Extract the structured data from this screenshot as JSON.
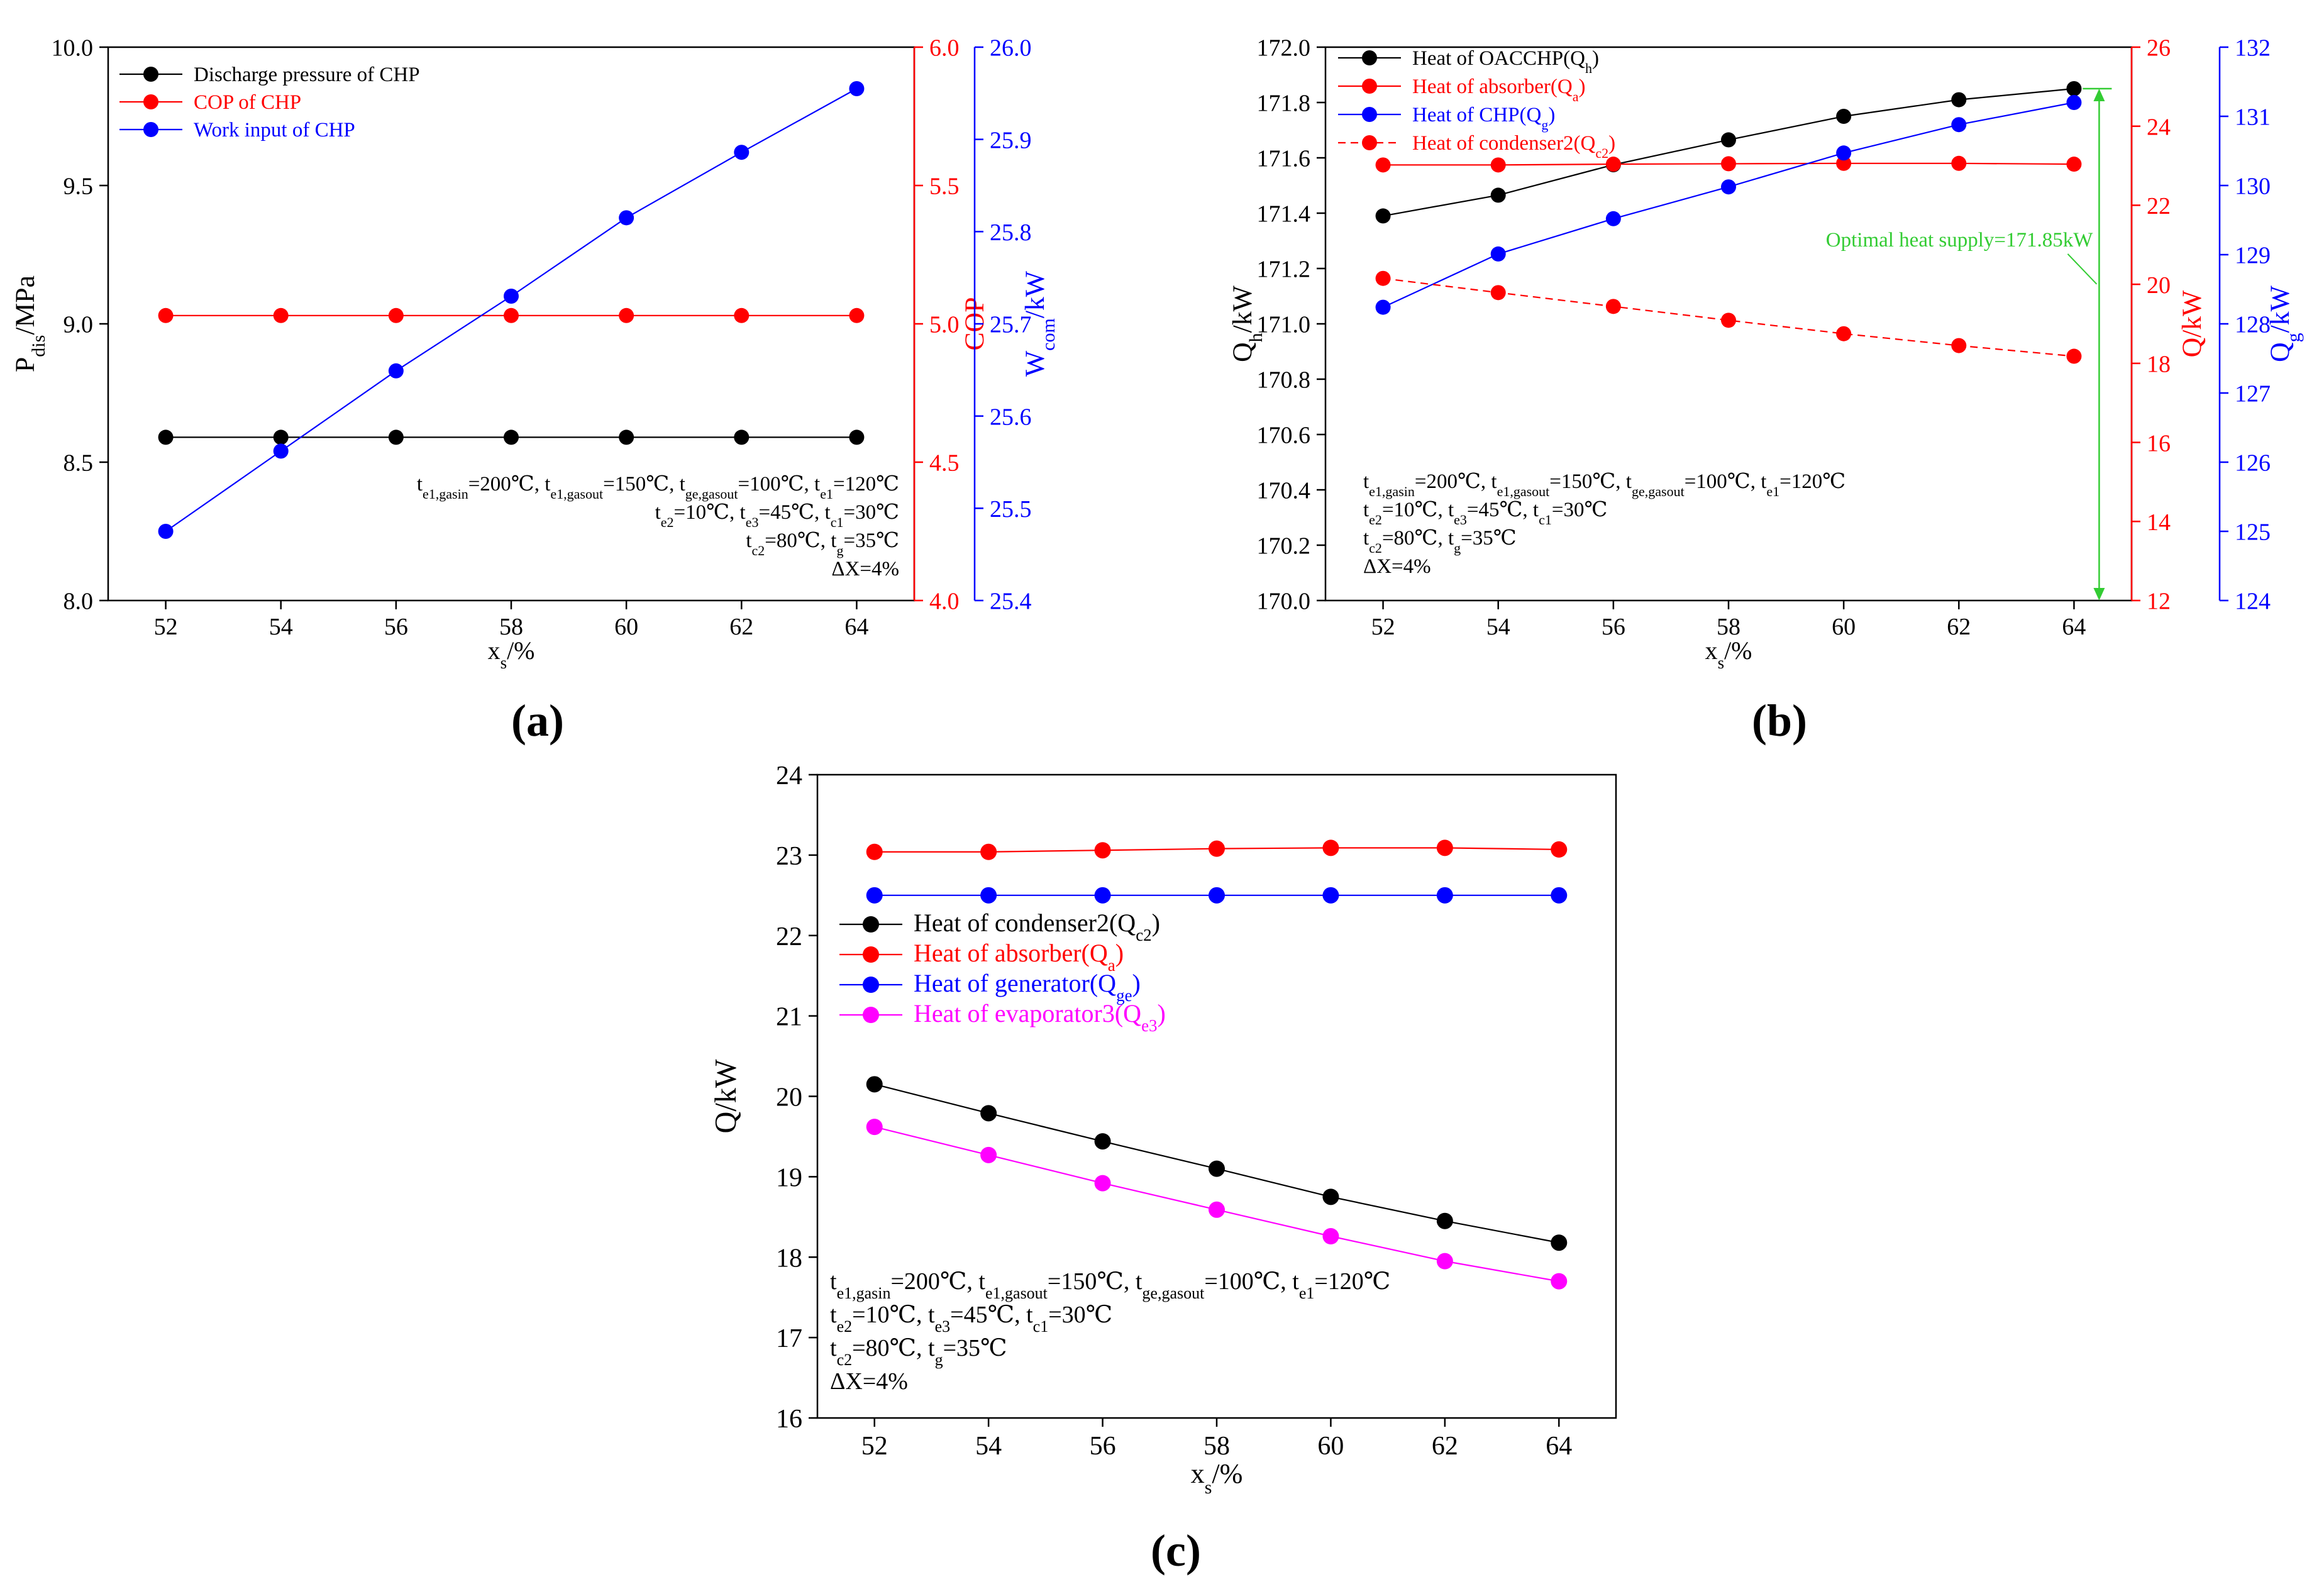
{
  "figure": {
    "panel_labels": [
      "(a)",
      "(b)",
      "(c)"
    ]
  },
  "colors": {
    "black": "#000000",
    "red": "#ff0000",
    "blue": "#0000ff",
    "magenta": "#ff00ff",
    "green": "#33cc33"
  },
  "chart_data": [
    {
      "id": "a",
      "type": "line",
      "xlabel": "x_s/%",
      "x": [
        52,
        54,
        56,
        58,
        60,
        62,
        64
      ],
      "xlim": [
        51,
        65
      ],
      "xticks": [
        52,
        54,
        56,
        58,
        60,
        62,
        64
      ],
      "axes": {
        "left": {
          "label": "P_dis/MPa",
          "range": [
            8.0,
            10.0
          ],
          "ticks": [
            "8.0",
            "8.5",
            "9.0",
            "9.5",
            "10.0"
          ],
          "color": "#000000"
        },
        "right1": {
          "label": "COP",
          "range": [
            4.0,
            6.0
          ],
          "ticks": [
            "4.0",
            "4.5",
            "5.0",
            "5.5",
            "6.0"
          ],
          "color": "#ff0000"
        },
        "right2": {
          "label": "W_com/kW",
          "range": [
            25.4,
            26.0
          ],
          "ticks": [
            "25.4",
            "25.5",
            "25.6",
            "25.7",
            "25.8",
            "25.9",
            "26.0"
          ],
          "color": "#0000ff"
        }
      },
      "series": [
        {
          "name": "Discharge pressure of CHP",
          "axis": "left",
          "color": "#000000",
          "style": "solid",
          "values": [
            8.59,
            8.59,
            8.59,
            8.59,
            8.59,
            8.59,
            8.59
          ]
        },
        {
          "name": "COP of CHP",
          "axis": "right1",
          "color": "#ff0000",
          "style": "solid",
          "values": [
            5.03,
            5.03,
            5.03,
            5.03,
            5.03,
            5.03,
            5.03
          ]
        },
        {
          "name": "Work input of CHP",
          "axis": "right2",
          "color": "#0000ff",
          "style": "solid",
          "values": [
            25.475,
            25.562,
            25.649,
            25.73,
            25.815,
            25.886,
            25.955
          ]
        }
      ],
      "legend_position": "top-left",
      "annotations": [
        "t_{e1,gasin}=200℃, t_{e1,gasout}=150℃, t_{ge,gasout}=100℃, t_{e1}=120℃",
        "t_{e2}=10℃, t_{e3}=45℃, t_{c1}=30℃",
        "t_{c2}=80℃, t_g=35℃",
        "ΔX=4%"
      ]
    },
    {
      "id": "b",
      "type": "line",
      "xlabel": "x_s/%",
      "x": [
        52,
        54,
        56,
        58,
        60,
        62,
        64
      ],
      "xlim": [
        51,
        65
      ],
      "xticks": [
        52,
        54,
        56,
        58,
        60,
        62,
        64
      ],
      "axes": {
        "left": {
          "label": "Q_h/kW",
          "range": [
            170.0,
            172.0
          ],
          "ticks": [
            "170.0",
            "170.2",
            "170.4",
            "170.6",
            "170.8",
            "171.0",
            "171.2",
            "171.4",
            "171.6",
            "171.8",
            "172.0"
          ],
          "color": "#000000"
        },
        "right1": {
          "label": "Q/kW",
          "range": [
            12,
            26
          ],
          "ticks": [
            "12",
            "14",
            "16",
            "18",
            "20",
            "22",
            "24",
            "26"
          ],
          "color": "#ff0000"
        },
        "right2": {
          "label": "Q_g/kW",
          "range": [
            124,
            132
          ],
          "ticks": [
            "124",
            "125",
            "126",
            "127",
            "128",
            "129",
            "130",
            "131",
            "132"
          ],
          "color": "#0000ff"
        }
      },
      "series": [
        {
          "name": "Heat of OACCHP(Q_h)",
          "axis": "left",
          "color": "#000000",
          "style": "solid",
          "values": [
            171.39,
            171.465,
            171.575,
            171.665,
            171.75,
            171.81,
            171.85
          ]
        },
        {
          "name": "Heat of absorber(Q_a)",
          "axis": "right1",
          "color": "#ff0000",
          "style": "solid",
          "values": [
            23.02,
            23.02,
            23.04,
            23.05,
            23.06,
            23.06,
            23.04
          ]
        },
        {
          "name": "Heat of CHP(Q_g)",
          "axis": "right2",
          "color": "#0000ff",
          "style": "solid",
          "values": [
            128.24,
            129.01,
            129.52,
            129.98,
            130.47,
            130.88,
            131.2
          ]
        },
        {
          "name": "Heat of condenser2(Q_c2)",
          "axis": "right1",
          "color": "#ff0000",
          "style": "dashed",
          "values": [
            20.15,
            19.79,
            19.44,
            19.09,
            18.75,
            18.45,
            18.18
          ]
        }
      ],
      "legend_position": "top-left",
      "optimal_annotation": {
        "label": "Optimal heat supply=171.85kW",
        "x": 64,
        "value": 171.85,
        "color": "#33cc33"
      },
      "annotations": [
        "t_{e1,gasin}=200℃, t_{e1,gasout}=150℃, t_{ge,gasout}=100℃, t_{e1}=120℃",
        "t_{e2}=10℃, t_{e3}=45℃, t_{c1}=30℃",
        "t_{c2}=80℃, t_g=35℃",
        "ΔX=4%"
      ]
    },
    {
      "id": "c",
      "type": "line",
      "xlabel": "x_s/%",
      "x": [
        52,
        54,
        56,
        58,
        60,
        62,
        64
      ],
      "xlim": [
        51,
        65
      ],
      "xticks": [
        52,
        54,
        56,
        58,
        60,
        62,
        64
      ],
      "axes": {
        "left": {
          "label": "Q/kW",
          "range": [
            16,
            24
          ],
          "ticks": [
            "16",
            "17",
            "18",
            "19",
            "20",
            "21",
            "22",
            "23",
            "24"
          ],
          "color": "#000000"
        }
      },
      "series": [
        {
          "name": "Heat of condenser2(Q_c2)",
          "axis": "left",
          "color": "#000000",
          "style": "solid",
          "values": [
            20.15,
            19.79,
            19.44,
            19.1,
            18.75,
            18.45,
            18.18
          ]
        },
        {
          "name": "Heat of absorber(Q_a)",
          "axis": "left",
          "color": "#ff0000",
          "style": "solid",
          "values": [
            23.04,
            23.04,
            23.06,
            23.08,
            23.09,
            23.09,
            23.07
          ]
        },
        {
          "name": "Heat of generator(Q_ge)",
          "axis": "left",
          "color": "#0000ff",
          "style": "solid",
          "values": [
            22.5,
            22.5,
            22.5,
            22.5,
            22.5,
            22.5,
            22.5
          ]
        },
        {
          "name": "Heat of evaporator3(Q_e3)",
          "axis": "left",
          "color": "#ff00ff",
          "style": "solid",
          "values": [
            19.62,
            19.27,
            18.92,
            18.59,
            18.26,
            17.95,
            17.7
          ]
        }
      ],
      "legend_position": "top-left",
      "annotations": [
        "t_{e1,gasin}=200℃, t_{e1,gasout}=150℃, t_{ge,gasout}=100℃, t_{e1}=120℃",
        "t_{e2}=10℃, t_{e3}=45℃, t_{c1}=30℃",
        "t_{c2}=80℃, t_g=35℃",
        "ΔX=4%"
      ]
    }
  ]
}
